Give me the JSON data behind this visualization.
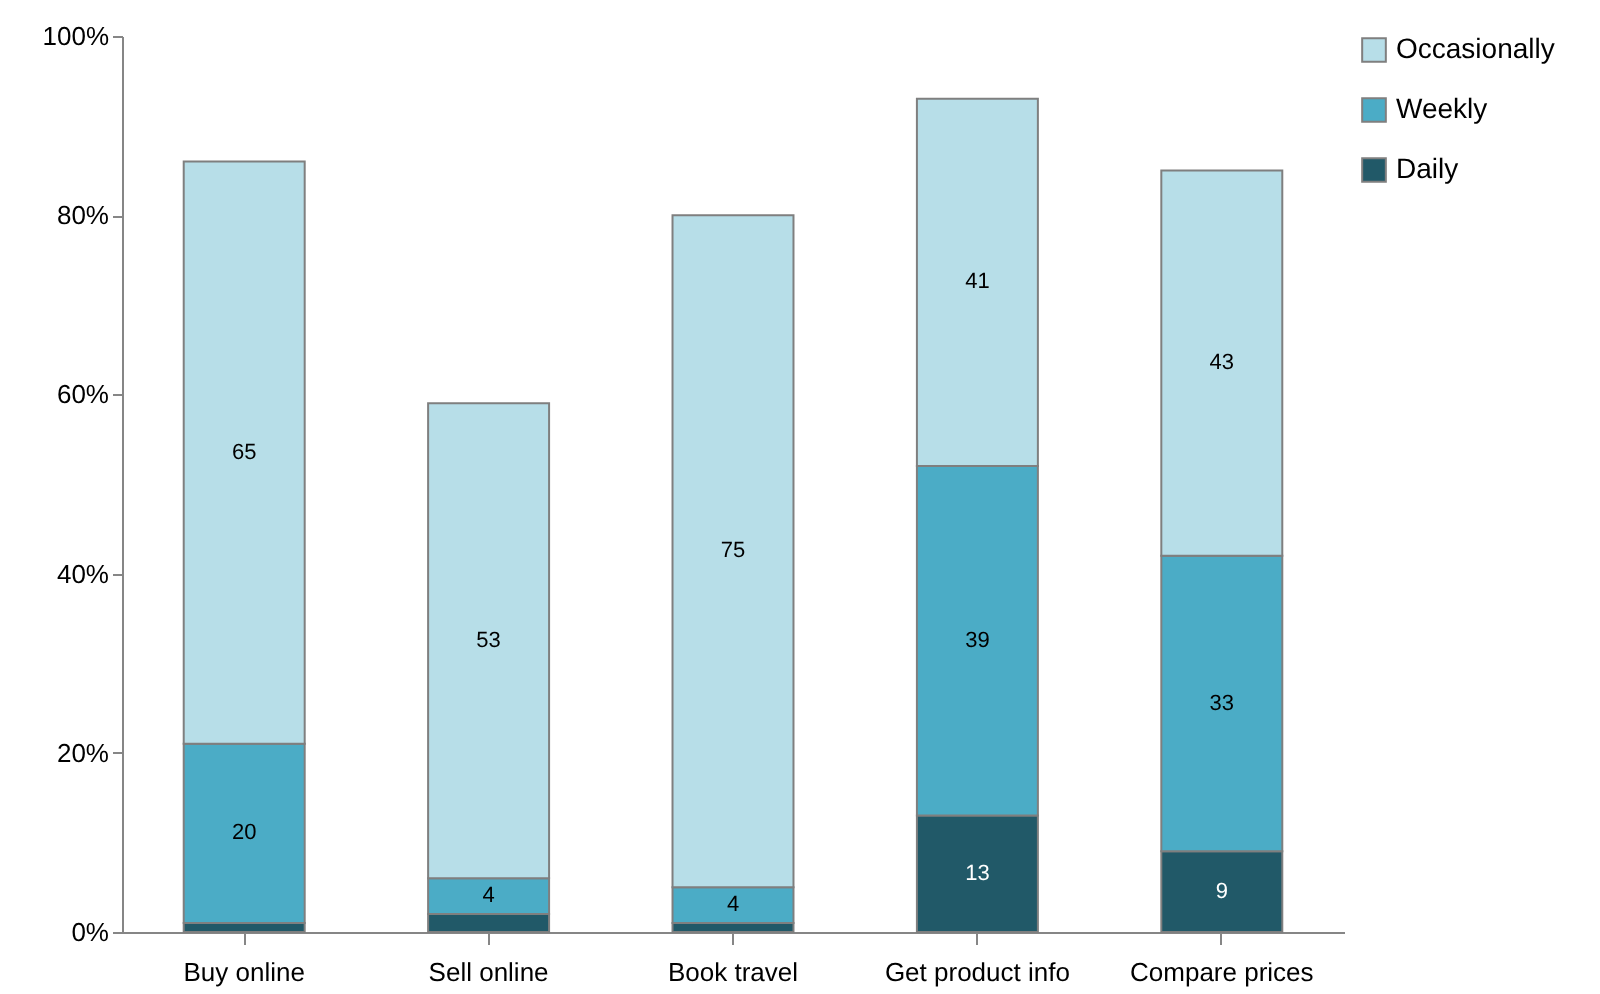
{
  "chart_data": {
    "type": "bar",
    "stacked": true,
    "categories": [
      "Buy online",
      "Sell online",
      "Book travel",
      "Get product info",
      "Compare prices"
    ],
    "series": [
      {
        "name": "Daily",
        "color": "#215968",
        "values": [
          1,
          2,
          1,
          13,
          9
        ],
        "value_labels": [
          null,
          null,
          null,
          "13",
          "9"
        ]
      },
      {
        "name": "Weekly",
        "color": "#4bacc6",
        "values": [
          20,
          4,
          4,
          39,
          33
        ],
        "value_labels": [
          "20",
          "4",
          "4",
          "39",
          "33"
        ]
      },
      {
        "name": "Occasionally",
        "color": "#b7dee8",
        "values": [
          65,
          53,
          75,
          41,
          43
        ],
        "value_labels": [
          "65",
          "53",
          "75",
          "41",
          "43"
        ]
      }
    ],
    "ylim": [
      0,
      100
    ],
    "yticks": [
      {
        "value": 0,
        "label": "0%"
      },
      {
        "value": 20,
        "label": "20%"
      },
      {
        "value": 40,
        "label": "40%"
      },
      {
        "value": 60,
        "label": "60%"
      },
      {
        "value": 80,
        "label": "80%"
      },
      {
        "value": 100,
        "label": "100%"
      }
    ],
    "grid": false,
    "legend": "right"
  }
}
